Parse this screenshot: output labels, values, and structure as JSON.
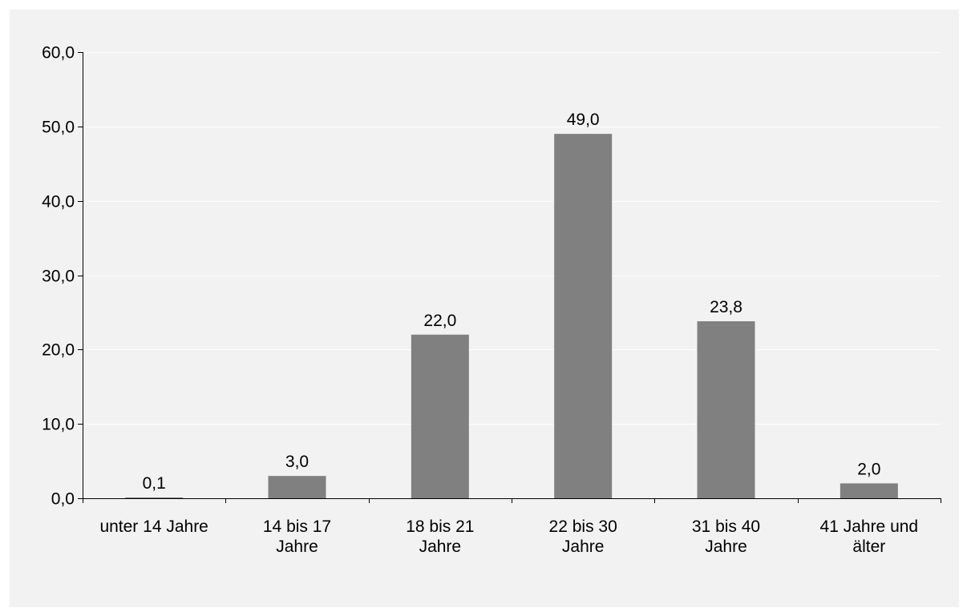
{
  "chart_data": {
    "type": "bar",
    "categories": [
      [
        "unter 14 Jahre"
      ],
      [
        "14 bis 17",
        "Jahre"
      ],
      [
        "18 bis 21",
        "Jahre"
      ],
      [
        "22 bis 30",
        "Jahre"
      ],
      [
        "31 bis 40",
        "Jahre"
      ],
      [
        "41 Jahre und",
        "älter"
      ]
    ],
    "values": [
      0.1,
      3.0,
      22.0,
      49.0,
      23.8,
      2.0
    ],
    "value_labels": [
      "0,1",
      "3,0",
      "22,0",
      "49,0",
      "23,8",
      "2,0"
    ],
    "y_ticks": [
      "0,0",
      "10,0",
      "20,0",
      "30,0",
      "40,0",
      "50,0",
      "60,0"
    ],
    "ylim": [
      0,
      60
    ],
    "grid": true,
    "bar_color": "#808080",
    "background_color": "#f2f2f2"
  }
}
